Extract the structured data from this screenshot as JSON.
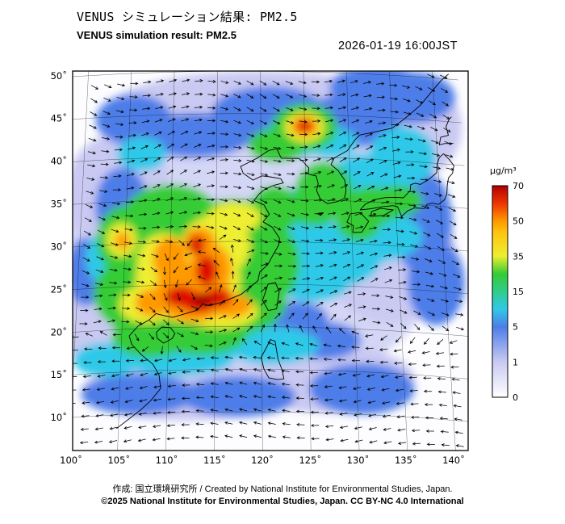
{
  "header": {
    "title_jp": "VENUS シミュレーション結果: PM2.5",
    "title_en": "VENUS simulation result: PM2.5",
    "datetime": "2026-01-19 16:00JST"
  },
  "footer": {
    "credit": "作成:  国立環境研究所 / Created by National Institute for Environmental Studies, Japan.",
    "copyright": "©2025 National Institute for Environmental Studies, Japan. CC BY-NC 4.0 International"
  },
  "chart_data": {
    "type": "heatmap",
    "title": "VENUS simulation result: PM2.5",
    "title_jp": "VENUS シミュレーション結果: PM2.5",
    "variable": "PM2.5",
    "datetime": "2026-01-19 16:00JST",
    "units": "µg/m³",
    "projection": "lambert-conformal-like",
    "x_axis": {
      "name": "longitude",
      "ticks": [
        "100˚",
        "105˚",
        "110˚",
        "115˚",
        "120˚",
        "125˚",
        "130˚",
        "135˚",
        "140˚"
      ],
      "range": [
        100,
        140
      ]
    },
    "y_axis": {
      "name": "latitude",
      "ticks": [
        "10˚",
        "15˚",
        "20˚",
        "25˚",
        "30˚",
        "35˚",
        "40˚",
        "45˚",
        "50˚"
      ],
      "range": [
        10,
        50
      ]
    },
    "colorbar": {
      "label": "µg/m³",
      "tick_levels": [
        0,
        1,
        5,
        15,
        35,
        50,
        70
      ],
      "gradient_stops": [
        {
          "v": 0,
          "c": "#ffffff"
        },
        {
          "v": 1,
          "c": "#c9c9f2"
        },
        {
          "v": 5,
          "c": "#4d7de8"
        },
        {
          "v": 10,
          "c": "#2fc9e8"
        },
        {
          "v": 15,
          "c": "#2fcc8a"
        },
        {
          "v": 25,
          "c": "#35cc35"
        },
        {
          "v": 35,
          "c": "#eeee30"
        },
        {
          "v": 45,
          "c": "#ffc410"
        },
        {
          "v": 50,
          "c": "#ff9900"
        },
        {
          "v": 60,
          "c": "#ee3300"
        },
        {
          "v": 70,
          "c": "#b00000"
        }
      ]
    },
    "wind_overlay": {
      "style": "black-arrows",
      "cyclonic_center": [
        113.5,
        24.5
      ]
    },
    "plumes": [
      [
        118,
        29,
        21,
        17,
        "#d4d6f6"
      ],
      [
        120,
        45.5,
        16,
        4.5,
        "#c9c9f2"
      ],
      [
        104,
        36,
        5.5,
        7,
        "#c9c9f2"
      ],
      [
        134,
        29,
        7,
        8,
        "#c9c9f2"
      ],
      [
        112,
        12.5,
        11,
        3.5,
        "#c9c9f2"
      ],
      [
        127,
        14,
        9,
        4,
        "#c9c9f2"
      ],
      [
        102.5,
        21,
        4,
        6,
        "#c9c9f2"
      ],
      [
        137.5,
        44,
        5,
        6,
        "#c9c9f2"
      ],
      [
        112.5,
        42.5,
        6,
        2.6,
        "#4d7de8"
      ],
      [
        121,
        45.2,
        6,
        3,
        "#4d7de8"
      ],
      [
        130.5,
        44.5,
        5,
        3.2,
        "#4d7de8"
      ],
      [
        137.5,
        47.5,
        4.5,
        3,
        "#4d7de8"
      ],
      [
        104.5,
        34.5,
        2.8,
        4.5,
        "#4d7de8"
      ],
      [
        137.8,
        33,
        3.2,
        6,
        "#4d7de8"
      ],
      [
        139,
        26,
        3,
        5,
        "#4d7de8"
      ],
      [
        107,
        12.3,
        6,
        2.4,
        "#4d7de8"
      ],
      [
        117.5,
        11.8,
        6,
        2.4,
        "#4d7de8"
      ],
      [
        130.5,
        13,
        5.5,
        3,
        "#4d7de8"
      ],
      [
        126.5,
        18.5,
        4,
        2.2,
        "#4d7de8"
      ],
      [
        123.5,
        21,
        3.5,
        2,
        "#4d7de8"
      ],
      [
        105.5,
        44.5,
        4,
        3,
        "#4d7de8"
      ],
      [
        133.5,
        48.5,
        5,
        2.5,
        "#4d7de8"
      ],
      [
        135.5,
        37.5,
        3,
        2.5,
        "#4d7de8"
      ],
      [
        100.8,
        27,
        2,
        4,
        "#4d7de8"
      ],
      [
        127,
        28.5,
        6,
        4,
        "#2fc9e8"
      ],
      [
        132.5,
        31,
        5,
        3,
        "#2fc9e8"
      ],
      [
        124.5,
        33.5,
        3,
        3,
        "#2fc9e8"
      ],
      [
        131.5,
        37.8,
        3.5,
        2.8,
        "#2fc9e8"
      ],
      [
        136,
        40.5,
        3.5,
        3.5,
        "#2fc9e8"
      ],
      [
        121,
        17.8,
        5,
        2.2,
        "#2fc9e8"
      ],
      [
        111,
        16.5,
        6,
        2.2,
        "#2fc9e8"
      ],
      [
        103.5,
        16.5,
        3.5,
        2,
        "#2fc9e8"
      ],
      [
        123.5,
        42,
        3.5,
        2.2,
        "#2fc9e8"
      ],
      [
        128,
        41.8,
        2.8,
        1.8,
        "#2fc9e8"
      ],
      [
        106.5,
        40.5,
        2.6,
        2,
        "#2fc9e8"
      ],
      [
        102.8,
        28.5,
        2,
        3,
        "#2fc9e8"
      ],
      [
        125.5,
        25.5,
        4,
        2.5,
        "#2fc9e8"
      ],
      [
        112,
        27,
        7.5,
        7.5,
        "#35cc35"
      ],
      [
        117,
        30.5,
        5.5,
        4.5,
        "#35cc35"
      ],
      [
        108,
        24,
        6,
        5,
        "#35cc35"
      ],
      [
        116.5,
        23,
        6,
        4,
        "#35cc35"
      ],
      [
        120,
        27.5,
        4,
        5,
        "#35cc35"
      ],
      [
        110,
        33,
        5,
        3.8,
        "#35cc35"
      ],
      [
        105,
        30.5,
        3,
        4,
        "#35cc35"
      ],
      [
        113.5,
        19.5,
        5,
        2.8,
        "#35cc35"
      ],
      [
        108,
        19,
        4,
        2.4,
        "#35cc35"
      ],
      [
        127,
        36,
        3,
        3.5,
        "#35cc35"
      ],
      [
        125.8,
        34,
        2.8,
        2,
        "#35cc35"
      ],
      [
        125,
        43.5,
        3.4,
        2.8,
        "#35cc35"
      ],
      [
        121.8,
        41.3,
        3,
        2,
        "#35cc35"
      ],
      [
        132.5,
        34.6,
        3.2,
        2.2,
        "#35cc35"
      ],
      [
        135.2,
        35.3,
        2.6,
        1.8,
        "#35cc35"
      ],
      [
        130.8,
        32.8,
        2.4,
        2.4,
        "#35cc35"
      ],
      [
        119.5,
        24.8,
        3,
        2.4,
        "#35cc35"
      ],
      [
        121.5,
        33.8,
        2.6,
        2.8,
        "#35cc35"
      ],
      [
        112,
        25.5,
        5.5,
        5,
        "#eeee30"
      ],
      [
        115,
        29.5,
        3.6,
        3.6,
        "#eeee30"
      ],
      [
        109.3,
        27.5,
        2.8,
        3.6,
        "#eeee30"
      ],
      [
        115.5,
        21.8,
        4,
        2,
        "#eeee30"
      ],
      [
        107.5,
        22.8,
        2.8,
        2.2,
        "#eeee30"
      ],
      [
        104.6,
        30.5,
        1.6,
        2,
        "#eeee30"
      ],
      [
        125,
        43.5,
        2.1,
        1.8,
        "#eeee30"
      ],
      [
        117,
        32.8,
        2.8,
        1.8,
        "#eeee30"
      ],
      [
        112.5,
        24,
        4,
        3.4,
        "#ff9900"
      ],
      [
        114.4,
        26.8,
        2.2,
        3,
        "#ff9900"
      ],
      [
        110,
        28,
        1.8,
        2.6,
        "#ff9900"
      ],
      [
        113.2,
        30,
        1.7,
        1.7,
        "#ff9900"
      ],
      [
        108.2,
        23,
        1.8,
        1.6,
        "#ff9900"
      ],
      [
        125,
        43.6,
        1.4,
        1.2,
        "#ff9900"
      ],
      [
        104.7,
        30.4,
        0.8,
        1,
        "#ff9900"
      ],
      [
        116.5,
        22.5,
        2.4,
        1.4,
        "#ff9900"
      ],
      [
        111.3,
        23.6,
        1.7,
        1.2,
        "#dd0f00"
      ],
      [
        113.2,
        22.9,
        1.9,
        1.2,
        "#dd0f00"
      ],
      [
        115.2,
        23.4,
        1.5,
        1.1,
        "#dd0f00"
      ],
      [
        114,
        26.6,
        1.1,
        1.8,
        "#dd0f00"
      ],
      [
        112.9,
        29.6,
        0.8,
        1.2,
        "#dd0f00"
      ],
      [
        125,
        43.6,
        0.9,
        0.7,
        "#dd0f00"
      ],
      [
        113.6,
        23.1,
        0.9,
        0.6,
        "#900000"
      ]
    ],
    "coastlines": {
      "mainland_asia": [
        [
          104.8,
          8.4
        ],
        [
          107.2,
          10.4
        ],
        [
          108.3,
          11.5
        ],
        [
          109.3,
          12.9
        ],
        [
          109.1,
          14.5
        ],
        [
          108.4,
          15.8
        ],
        [
          107.2,
          16.9
        ],
        [
          106.1,
          18.2
        ],
        [
          105.8,
          19.2
        ],
        [
          106.7,
          20.3
        ],
        [
          107.9,
          21.0
        ],
        [
          108.6,
          21.7
        ],
        [
          109.6,
          21.4
        ],
        [
          110.4,
          21.2
        ],
        [
          111.8,
          21.6
        ],
        [
          113.1,
          22.0
        ],
        [
          113.6,
          22.7
        ],
        [
          114.3,
          22.5
        ],
        [
          115.5,
          22.8
        ],
        [
          116.7,
          23.3
        ],
        [
          117.8,
          23.8
        ],
        [
          118.6,
          24.5
        ],
        [
          119.6,
          25.4
        ],
        [
          119.8,
          26.4
        ],
        [
          120.7,
          27.3
        ],
        [
          121.2,
          28.3
        ],
        [
          121.9,
          29.6
        ],
        [
          122.0,
          30.4
        ],
        [
          121.2,
          31.7
        ],
        [
          120.2,
          32.3
        ],
        [
          120.9,
          33.2
        ],
        [
          120.3,
          34.3
        ],
        [
          119.2,
          34.8
        ],
        [
          119.8,
          35.6
        ],
        [
          120.4,
          36.1
        ],
        [
          121.4,
          36.6
        ],
        [
          122.5,
          36.9
        ],
        [
          122.2,
          37.4
        ],
        [
          121.0,
          37.6
        ],
        [
          120.1,
          37.7
        ],
        [
          119.1,
          37.2
        ],
        [
          118.0,
          38.0
        ],
        [
          117.7,
          38.8
        ],
        [
          118.5,
          39.2
        ],
        [
          119.6,
          39.8
        ],
        [
          120.9,
          40.7
        ],
        [
          121.8,
          40.9
        ],
        [
          122.3,
          39.8
        ],
        [
          123.5,
          39.8
        ],
        [
          124.3,
          39.8
        ],
        [
          124.7,
          39.5
        ],
        [
          125.4,
          38.7
        ],
        [
          125.3,
          38.0
        ],
        [
          126.2,
          37.8
        ],
        [
          126.4,
          36.9
        ],
        [
          126.2,
          36.1
        ],
        [
          126.6,
          35.1
        ],
        [
          127.4,
          34.6
        ],
        [
          128.6,
          34.9
        ],
        [
          129.3,
          35.3
        ],
        [
          129.5,
          36.2
        ],
        [
          129.4,
          37.4
        ],
        [
          128.7,
          38.5
        ],
        [
          127.9,
          39.2
        ],
        [
          128.3,
          40.0
        ],
        [
          129.8,
          40.9
        ],
        [
          130.7,
          42.2
        ],
        [
          131.3,
          42.8
        ],
        [
          133.2,
          43.3
        ],
        [
          135.0,
          43.8
        ],
        [
          136.5,
          45.0
        ],
        [
          138.4,
          46.7
        ],
        [
          139.8,
          48.4
        ],
        [
          141.0,
          49.8
        ],
        [
          141.9,
          50.6
        ]
      ],
      "hainan": [
        [
          108.7,
          19.5
        ],
        [
          109.3,
          20.1
        ],
        [
          110.2,
          20.0
        ],
        [
          110.7,
          19.3
        ],
        [
          110.4,
          18.7
        ],
        [
          109.5,
          18.2
        ],
        [
          108.8,
          18.8
        ],
        [
          108.7,
          19.5
        ]
      ],
      "taiwan": [
        [
          120.1,
          23.1
        ],
        [
          120.7,
          21.9
        ],
        [
          121.6,
          22.1
        ],
        [
          121.9,
          24.1
        ],
        [
          121.5,
          25.2
        ],
        [
          120.7,
          25.0
        ],
        [
          120.1,
          23.1
        ]
      ],
      "kyushu": [
        [
          130.1,
          31.3
        ],
        [
          131.1,
          31.4
        ],
        [
          131.9,
          32.7
        ],
        [
          131.0,
          33.7
        ],
        [
          129.9,
          33.5
        ],
        [
          129.5,
          32.5
        ],
        [
          130.2,
          32.1
        ],
        [
          130.1,
          31.3
        ]
      ],
      "shikoku": [
        [
          132.1,
          33.3
        ],
        [
          133.6,
          33.5
        ],
        [
          134.7,
          34.2
        ],
        [
          133.3,
          34.3
        ],
        [
          132.3,
          33.9
        ],
        [
          132.1,
          33.3
        ]
      ],
      "honshu": [
        [
          131.0,
          34.0
        ],
        [
          132.2,
          34.2
        ],
        [
          133.5,
          34.5
        ],
        [
          134.7,
          34.7
        ],
        [
          135.2,
          34.6
        ],
        [
          135.6,
          33.5
        ],
        [
          136.3,
          34.2
        ],
        [
          137.1,
          34.6
        ],
        [
          138.2,
          34.6
        ],
        [
          138.5,
          35.1
        ],
        [
          139.1,
          35.3
        ],
        [
          139.8,
          35.2
        ],
        [
          140.5,
          35.8
        ],
        [
          140.8,
          36.5
        ],
        [
          140.9,
          37.5
        ],
        [
          141.1,
          38.4
        ],
        [
          141.6,
          39.0
        ],
        [
          141.8,
          39.9
        ],
        [
          141.3,
          40.6
        ],
        [
          140.7,
          41.2
        ],
        [
          140.2,
          40.7
        ],
        [
          139.9,
          39.9
        ],
        [
          139.8,
          38.9
        ],
        [
          138.8,
          38.0
        ],
        [
          137.9,
          37.4
        ],
        [
          137.3,
          37.5
        ],
        [
          136.8,
          37.3
        ],
        [
          136.7,
          36.6
        ],
        [
          135.9,
          35.7
        ],
        [
          135.1,
          35.7
        ],
        [
          133.9,
          35.6
        ],
        [
          132.7,
          35.3
        ],
        [
          131.6,
          34.7
        ],
        [
          131.0,
          34.0
        ]
      ],
      "hokkaido_west": [
        [
          141.9,
          42.5
        ],
        [
          140.9,
          42.4
        ],
        [
          140.3,
          42.2
        ],
        [
          140.5,
          43.1
        ],
        [
          141.4,
          43.4
        ],
        [
          141.2,
          44.4
        ],
        [
          141.6,
          45.3
        ],
        [
          141.9,
          45.6
        ]
      ],
      "luzon": [
        [
          120.9,
          18.5
        ],
        [
          120.5,
          17.6
        ],
        [
          119.9,
          16.4
        ],
        [
          120.2,
          15.0
        ],
        [
          120.7,
          14.0
        ],
        [
          121.6,
          13.8
        ],
        [
          122.3,
          13.9
        ],
        [
          122.1,
          15.0
        ],
        [
          121.7,
          16.2
        ],
        [
          121.4,
          18.3
        ],
        [
          120.9,
          18.5
        ]
      ],
      "jeju": [
        [
          126.2,
          33.4
        ],
        [
          126.9,
          33.5
        ],
        [
          126.6,
          33.2
        ],
        [
          126.2,
          33.4
        ]
      ]
    }
  }
}
